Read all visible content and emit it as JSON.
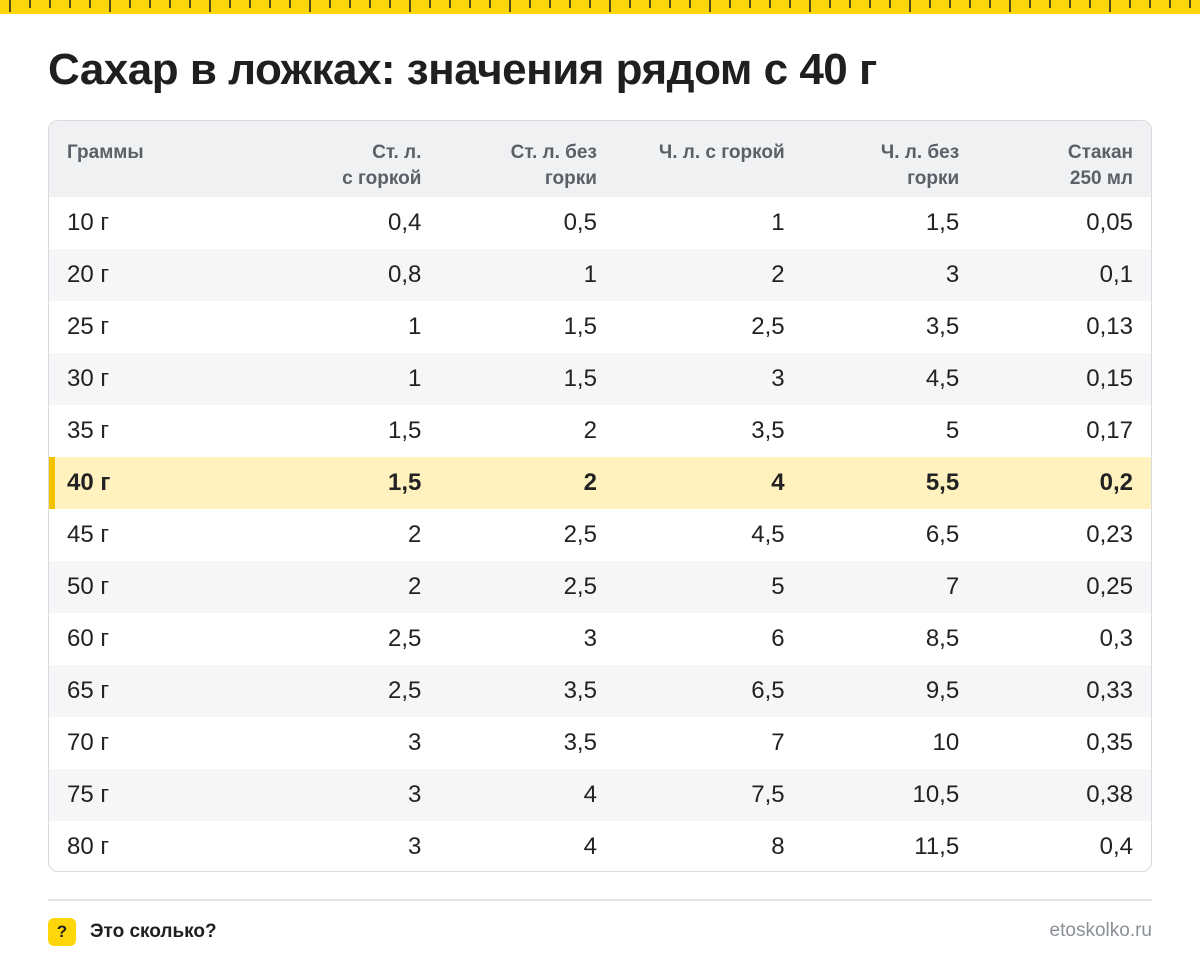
{
  "title": "Сахар в ложках: значения рядом с 40 г",
  "colors": {
    "accent": "#ffd60a",
    "highlight_row": "#fff2bf",
    "highlight_bar": "#f5c400"
  },
  "table": {
    "headers": [
      {
        "line1": "Граммы",
        "line2": ""
      },
      {
        "line1": "Ст. л.",
        "line2": "с горкой"
      },
      {
        "line1": "Ст. л. без",
        "line2": "горки"
      },
      {
        "line1": "Ч. л. с горкой",
        "line2": ""
      },
      {
        "line1": "Ч. л. без",
        "line2": "горки"
      },
      {
        "line1": "Стакан",
        "line2": "250 мл"
      }
    ],
    "highlighted_row": 5,
    "rows": [
      [
        "10 г",
        "0,4",
        "0,5",
        "1",
        "1,5",
        "0,05"
      ],
      [
        "20 г",
        "0,8",
        "1",
        "2",
        "3",
        "0,1"
      ],
      [
        "25 г",
        "1",
        "1,5",
        "2,5",
        "3,5",
        "0,13"
      ],
      [
        "30 г",
        "1",
        "1,5",
        "3",
        "4,5",
        "0,15"
      ],
      [
        "35 г",
        "1,5",
        "2",
        "3,5",
        "5",
        "0,17"
      ],
      [
        "40 г",
        "1,5",
        "2",
        "4",
        "5,5",
        "0,2"
      ],
      [
        "45 г",
        "2",
        "2,5",
        "4,5",
        "6,5",
        "0,23"
      ],
      [
        "50 г",
        "2",
        "2,5",
        "5",
        "7",
        "0,25"
      ],
      [
        "60 г",
        "2,5",
        "3",
        "6",
        "8,5",
        "0,3"
      ],
      [
        "65 г",
        "2,5",
        "3,5",
        "6,5",
        "9,5",
        "0,33"
      ],
      [
        "70 г",
        "3",
        "3,5",
        "7",
        "10",
        "0,35"
      ],
      [
        "75 г",
        "3",
        "4",
        "7,5",
        "10,5",
        "0,38"
      ],
      [
        "80 г",
        "3",
        "4",
        "8",
        "11,5",
        "0,4"
      ]
    ]
  },
  "footer": {
    "badge_icon": "question-mark-icon",
    "badge_symbol": "?",
    "brand": "Это сколько?",
    "site": "etoskolko.ru"
  }
}
